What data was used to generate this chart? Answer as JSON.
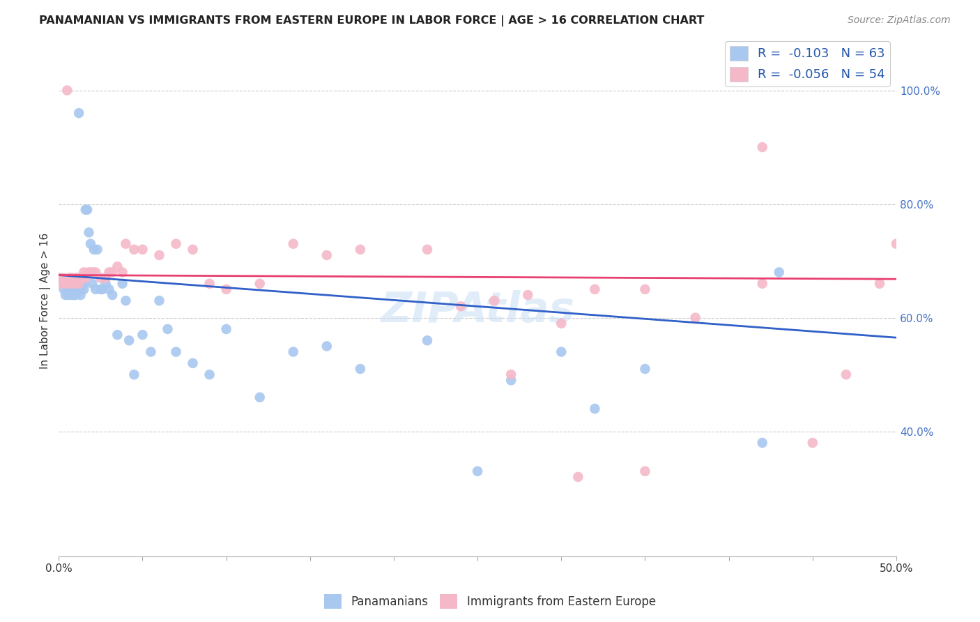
{
  "title": "PANAMANIAN VS IMMIGRANTS FROM EASTERN EUROPE IN LABOR FORCE | AGE > 16 CORRELATION CHART",
  "source": "Source: ZipAtlas.com",
  "ylabel": "In Labor Force | Age > 16",
  "right_ytick_vals": [
    1.0,
    0.8,
    0.6,
    0.4
  ],
  "xlim": [
    0.0,
    0.5
  ],
  "ylim": [
    0.18,
    1.08
  ],
  "color_blue": "#a8c8f0",
  "color_pink": "#f5b8c8",
  "line_color_blue": "#3060c8",
  "line_color_pink": "#e84070",
  "blue_scatter_x": [
    0.001,
    0.003,
    0.003,
    0.004,
    0.005,
    0.005,
    0.006,
    0.006,
    0.007,
    0.007,
    0.008,
    0.008,
    0.009,
    0.009,
    0.01,
    0.01,
    0.011,
    0.011,
    0.012,
    0.012,
    0.013,
    0.013,
    0.014,
    0.015,
    0.015,
    0.016,
    0.017,
    0.018,
    0.019,
    0.02,
    0.021,
    0.022,
    0.023,
    0.025,
    0.026,
    0.028,
    0.03,
    0.032,
    0.035,
    0.038,
    0.04,
    0.042,
    0.045,
    0.05,
    0.055,
    0.06,
    0.065,
    0.07,
    0.08,
    0.09,
    0.1,
    0.12,
    0.14,
    0.16,
    0.18,
    0.22,
    0.25,
    0.27,
    0.3,
    0.32,
    0.35,
    0.42,
    0.43
  ],
  "blue_scatter_y": [
    0.67,
    0.66,
    0.65,
    0.64,
    0.66,
    0.65,
    0.65,
    0.64,
    0.67,
    0.66,
    0.65,
    0.64,
    0.66,
    0.65,
    0.65,
    0.64,
    0.67,
    0.65,
    0.96,
    0.66,
    0.65,
    0.64,
    0.66,
    0.66,
    0.65,
    0.79,
    0.79,
    0.75,
    0.73,
    0.66,
    0.72,
    0.65,
    0.72,
    0.65,
    0.65,
    0.66,
    0.65,
    0.64,
    0.57,
    0.66,
    0.63,
    0.56,
    0.5,
    0.57,
    0.54,
    0.63,
    0.58,
    0.54,
    0.52,
    0.5,
    0.58,
    0.46,
    0.54,
    0.55,
    0.51,
    0.56,
    0.33,
    0.49,
    0.54,
    0.44,
    0.51,
    0.38,
    0.68
  ],
  "pink_scatter_x": [
    0.001,
    0.002,
    0.003,
    0.004,
    0.005,
    0.006,
    0.007,
    0.008,
    0.009,
    0.01,
    0.011,
    0.012,
    0.013,
    0.014,
    0.015,
    0.016,
    0.018,
    0.02,
    0.022,
    0.025,
    0.028,
    0.03,
    0.032,
    0.035,
    0.038,
    0.04,
    0.045,
    0.05,
    0.06,
    0.07,
    0.08,
    0.09,
    0.1,
    0.12,
    0.14,
    0.16,
    0.18,
    0.22,
    0.24,
    0.26,
    0.28,
    0.3,
    0.32,
    0.35,
    0.38,
    0.42,
    0.45,
    0.47,
    0.49,
    0.5,
    0.27,
    0.31,
    0.35,
    0.42
  ],
  "pink_scatter_y": [
    0.67,
    0.66,
    0.67,
    0.66,
    1.0,
    0.67,
    0.66,
    0.67,
    0.66,
    0.67,
    0.67,
    0.66,
    0.67,
    0.67,
    0.68,
    0.67,
    0.68,
    0.68,
    0.68,
    0.67,
    0.67,
    0.68,
    0.68,
    0.69,
    0.68,
    0.73,
    0.72,
    0.72,
    0.71,
    0.73,
    0.72,
    0.66,
    0.65,
    0.66,
    0.73,
    0.71,
    0.72,
    0.72,
    0.62,
    0.63,
    0.64,
    0.59,
    0.65,
    0.65,
    0.6,
    0.66,
    0.38,
    0.5,
    0.66,
    0.73,
    0.5,
    0.32,
    0.33,
    0.9
  ],
  "blue_trend_x": [
    0.0,
    0.5
  ],
  "blue_trend_y": [
    0.675,
    0.565
  ],
  "pink_trend_x": [
    0.0,
    0.5
  ],
  "pink_trend_y": [
    0.675,
    0.668
  ],
  "xtick_labels_show": [
    "0.0%",
    "50.0%"
  ],
  "xtick_positions_show": [
    0.0,
    0.5
  ],
  "xtick_positions_all": [
    0.0,
    0.05,
    0.1,
    0.15,
    0.2,
    0.25,
    0.3,
    0.35,
    0.4,
    0.45,
    0.5
  ],
  "watermark_text": "ZIPAtlas"
}
